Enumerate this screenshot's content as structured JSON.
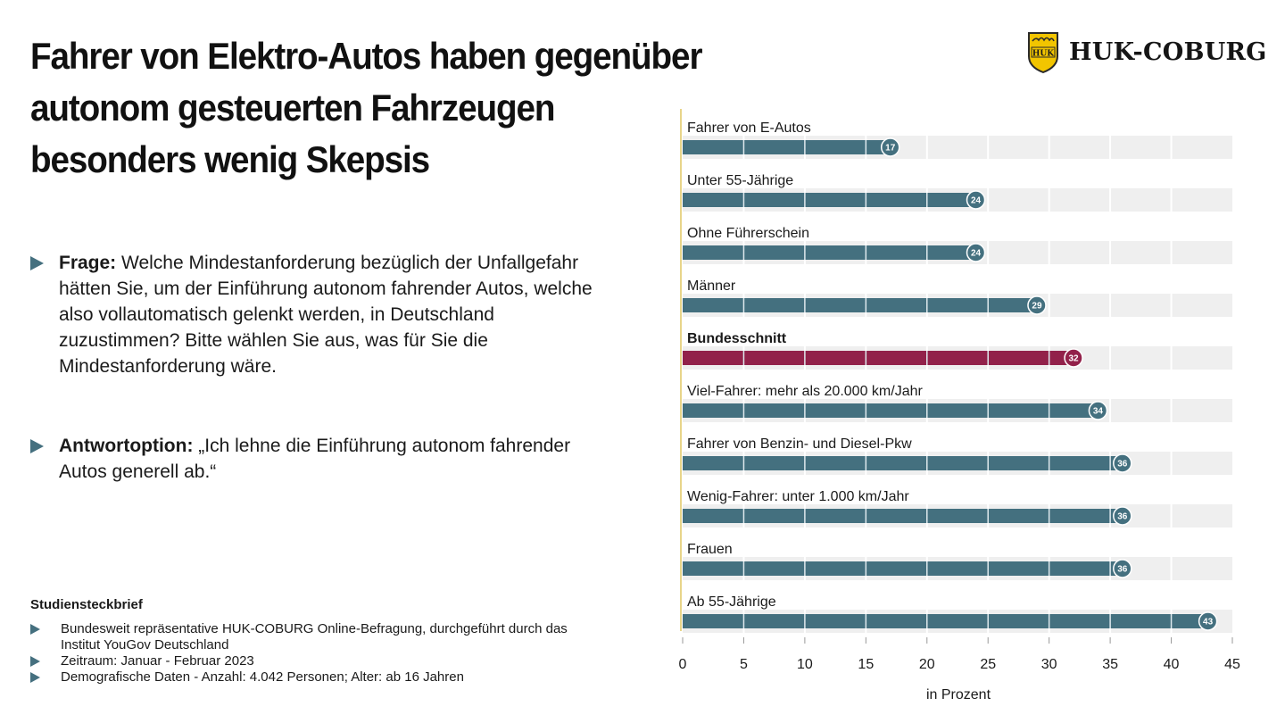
{
  "header": {
    "title_lines": [
      "Fahrer von Elektro-Autos haben gegenüber",
      "autonom gesteuerten Fahrzeugen",
      "besonders wenig Skepsis"
    ],
    "logo_text": "HUK-COBURG",
    "logo_badge": "HUK"
  },
  "question": {
    "label": "Frage:",
    "text": " Welche Mindestanforderung bezüglich der Unfallgefahr hätten Sie, um der Einführung autonom fahrender Autos, welche also vollautomatisch gelenkt werden, in Deutschland zuzustimmen? Bitte wählen Sie aus, was für Sie die Mindestanforderung wäre."
  },
  "answer": {
    "label": "Antwortoption:",
    "text": " „Ich lehne die Einführung autonom fahrender Autos generell ab.“"
  },
  "study": {
    "title": "Studiensteckbrief",
    "items": [
      "Bundesweit repräsentative HUK-COBURG Online-Befragung, durchgeführt durch das Institut YouGov Deutschland",
      "Zeitraum: Januar - Februar 2023",
      "Demografische Daten - Anzahl: 4.042 Personen; Alter: ab 16 Jahren"
    ]
  },
  "colors": {
    "bar": "#44707f",
    "highlight": "#92214a",
    "track": "#efefef",
    "axis_line": "#e8d58a",
    "arrow": "#45707f",
    "logo_yellow": "#f2c500"
  },
  "chart_data": {
    "type": "bar",
    "orientation": "horizontal",
    "title": "",
    "xlabel": "in Prozent",
    "ylabel": "",
    "xlim": [
      0,
      45
    ],
    "xticks": [
      0,
      5,
      10,
      15,
      20,
      25,
      30,
      35,
      40,
      45
    ],
    "grid": true,
    "categories": [
      "Fahrer von E-Autos",
      "Unter 55-Jährige",
      "Ohne Führerschein",
      "Männer",
      "Bundesschnitt",
      "Viel-Fahrer: mehr als 20.000 km/Jahr",
      "Fahrer von Benzin- und Diesel-Pkw",
      "Wenig-Fahrer: unter 1.000 km/Jahr",
      "Frauen",
      "Ab 55-Jährige"
    ],
    "values": [
      17,
      24,
      24,
      29,
      32,
      34,
      36,
      36,
      36,
      43
    ],
    "highlighted": [
      "Bundesschnitt"
    ]
  }
}
